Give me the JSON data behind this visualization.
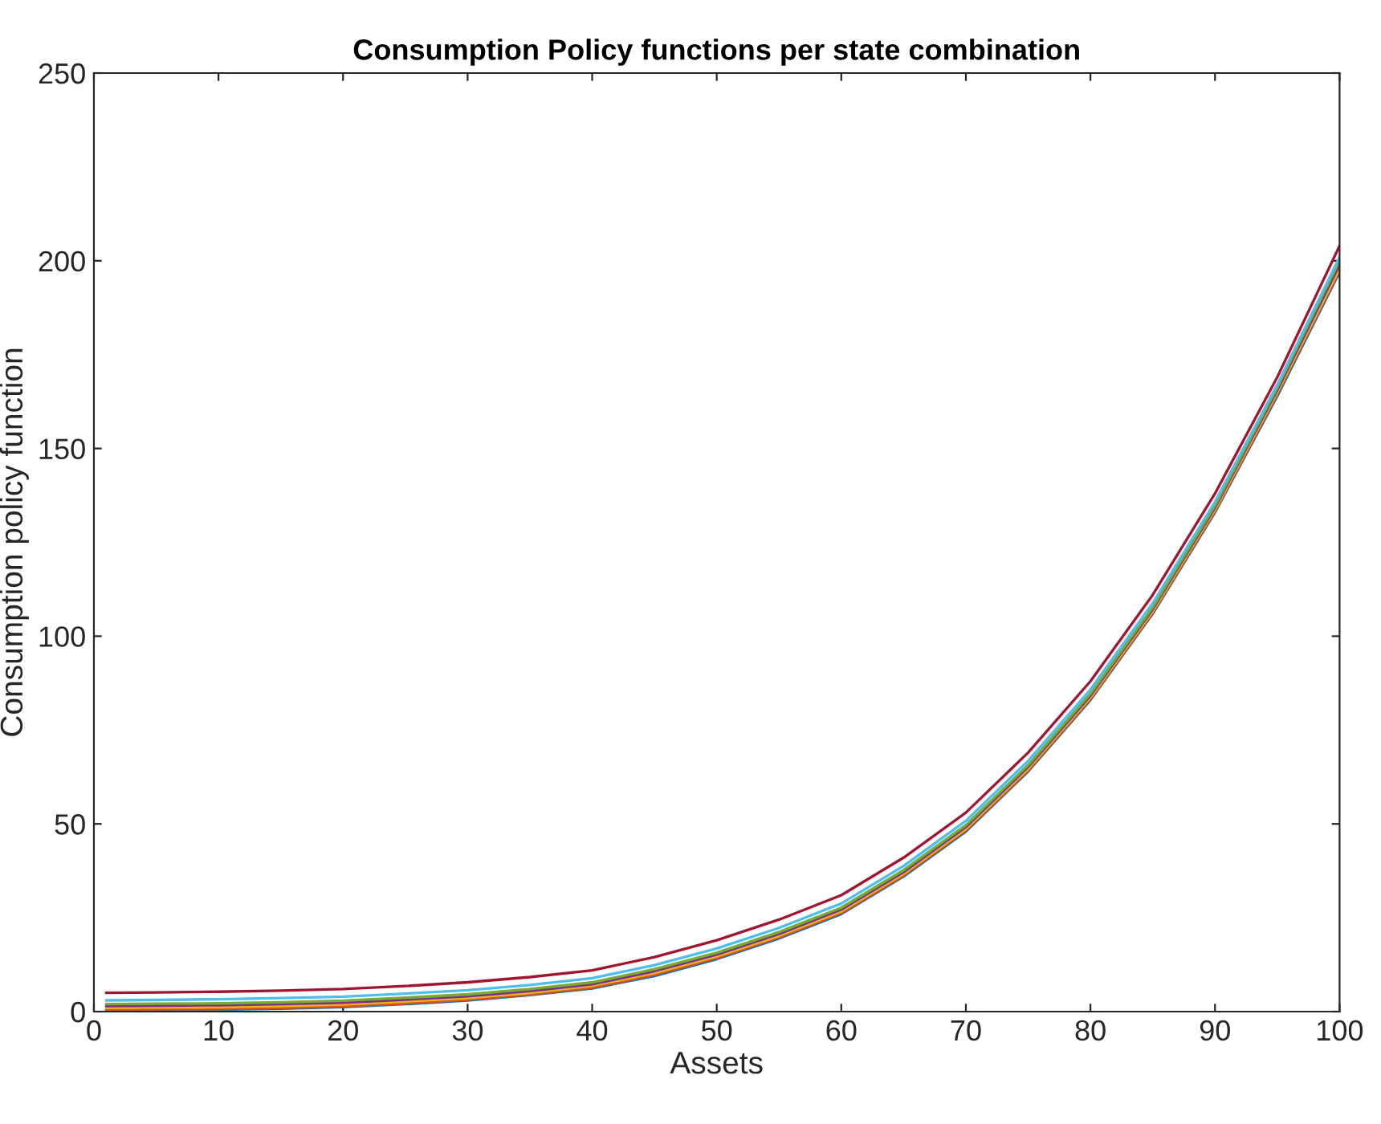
{
  "chart_data": {
    "type": "line",
    "title": "Consumption Policy functions per state combination",
    "xlabel": "Assets",
    "ylabel": "Consumption policy function",
    "x": [
      1,
      5,
      10,
      15,
      20,
      25,
      30,
      35,
      40,
      45,
      50,
      55,
      60,
      65,
      70,
      75,
      80,
      85,
      90,
      95,
      100
    ],
    "series": [
      {
        "color": "#0072bd",
        "values": [
          0.3,
          0.4,
          0.5,
          0.8,
          1.2,
          2.0,
          3.0,
          4.4,
          6.2,
          9.5,
          14,
          19.5,
          26,
          36,
          48,
          64,
          83,
          106,
          133,
          164,
          197
        ]
      },
      {
        "color": "#d95319",
        "values": [
          0.5,
          0.6,
          0.7,
          1.0,
          1.4,
          2.2,
          3.2,
          4.6,
          6.4,
          9.8,
          14.3,
          19.8,
          26.3,
          36.3,
          48.3,
          64.3,
          83.3,
          106.3,
          133.3,
          164.5,
          197.5
        ]
      },
      {
        "color": "#edb120",
        "values": [
          1.0,
          1.1,
          1.2,
          1.5,
          1.9,
          2.7,
          3.6,
          5.0,
          6.9,
          10.3,
          14.7,
          20.2,
          26.7,
          36.7,
          48.7,
          64.7,
          83.7,
          106.7,
          133.8,
          165,
          198
        ]
      },
      {
        "color": "#7e2f8e",
        "values": [
          1.5,
          1.6,
          1.7,
          2.0,
          2.4,
          3.2,
          4.1,
          5.5,
          7.3,
          10.8,
          15.2,
          20.7,
          27.2,
          37.2,
          49.2,
          65.2,
          84.2,
          107.2,
          134.3,
          165.6,
          199
        ]
      },
      {
        "color": "#77ac30",
        "values": [
          2.0,
          2.1,
          2.2,
          2.5,
          2.9,
          3.7,
          4.6,
          6.0,
          7.8,
          11.3,
          15.7,
          21.2,
          27.7,
          37.7,
          49.7,
          65.7,
          84.7,
          107.7,
          134.8,
          166.2,
          200
        ]
      },
      {
        "color": "#4dbeee",
        "values": [
          3.0,
          3.1,
          3.3,
          3.6,
          4.0,
          4.8,
          5.7,
          7.1,
          8.9,
          12.4,
          16.8,
          22.3,
          28.8,
          38.8,
          50.8,
          66.8,
          85.8,
          108.8,
          135.8,
          167,
          201
        ]
      },
      {
        "color": "#a2142f",
        "values": [
          5.0,
          5.1,
          5.3,
          5.6,
          6.0,
          6.8,
          7.8,
          9.2,
          11,
          14.5,
          19,
          24.5,
          31,
          41,
          53,
          69,
          88,
          111,
          138,
          169,
          204
        ]
      }
    ],
    "xlim": [
      0,
      100
    ],
    "xticks": [
      0,
      10,
      20,
      30,
      40,
      50,
      60,
      70,
      80,
      90,
      100
    ],
    "ylim": [
      0,
      250
    ],
    "yticks": [
      0,
      50,
      100,
      150,
      200,
      250
    ],
    "grid": false,
    "legend": false,
    "marker": "none",
    "line_style": "solid"
  }
}
